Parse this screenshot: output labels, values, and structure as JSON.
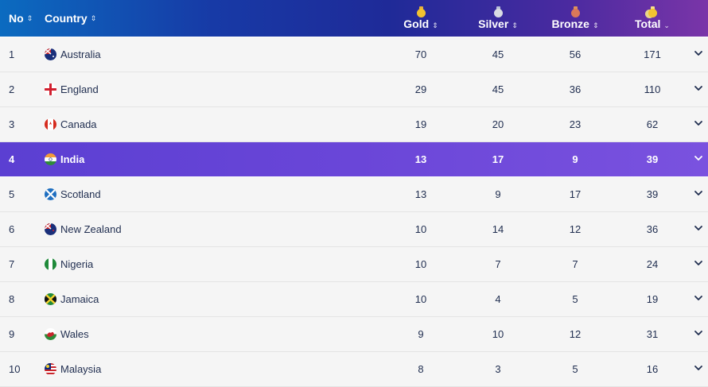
{
  "header": {
    "no": "No",
    "country": "Country",
    "gold": "Gold",
    "silver": "Silver",
    "bronze": "Bronze",
    "total": "Total",
    "sort_icon": "⇕",
    "total_sort_icon": "⌄"
  },
  "colors": {
    "gold": "#e8b23a",
    "silver": "#c7c7cf",
    "bronze": "#d9785a",
    "highlight": "#6a46d8"
  },
  "rows": [
    {
      "no": "1",
      "country": "Australia",
      "gold": "70",
      "silver": "45",
      "bronze": "56",
      "total": "171"
    },
    {
      "no": "2",
      "country": "England",
      "gold": "29",
      "silver": "45",
      "bronze": "36",
      "total": "110"
    },
    {
      "no": "3",
      "country": "Canada",
      "gold": "19",
      "silver": "20",
      "bronze": "23",
      "total": "62"
    },
    {
      "no": "4",
      "country": "India",
      "gold": "13",
      "silver": "17",
      "bronze": "9",
      "total": "39"
    },
    {
      "no": "5",
      "country": "Scotland",
      "gold": "13",
      "silver": "9",
      "bronze": "17",
      "total": "39"
    },
    {
      "no": "6",
      "country": "New Zealand",
      "gold": "10",
      "silver": "14",
      "bronze": "12",
      "total": "36"
    },
    {
      "no": "7",
      "country": "Nigeria",
      "gold": "10",
      "silver": "7",
      "bronze": "7",
      "total": "24"
    },
    {
      "no": "8",
      "country": "Jamaica",
      "gold": "10",
      "silver": "4",
      "bronze": "5",
      "total": "19"
    },
    {
      "no": "9",
      "country": "Wales",
      "gold": "9",
      "silver": "10",
      "bronze": "12",
      "total": "31"
    },
    {
      "no": "10",
      "country": "Malaysia",
      "gold": "8",
      "silver": "3",
      "bronze": "5",
      "total": "16"
    }
  ]
}
